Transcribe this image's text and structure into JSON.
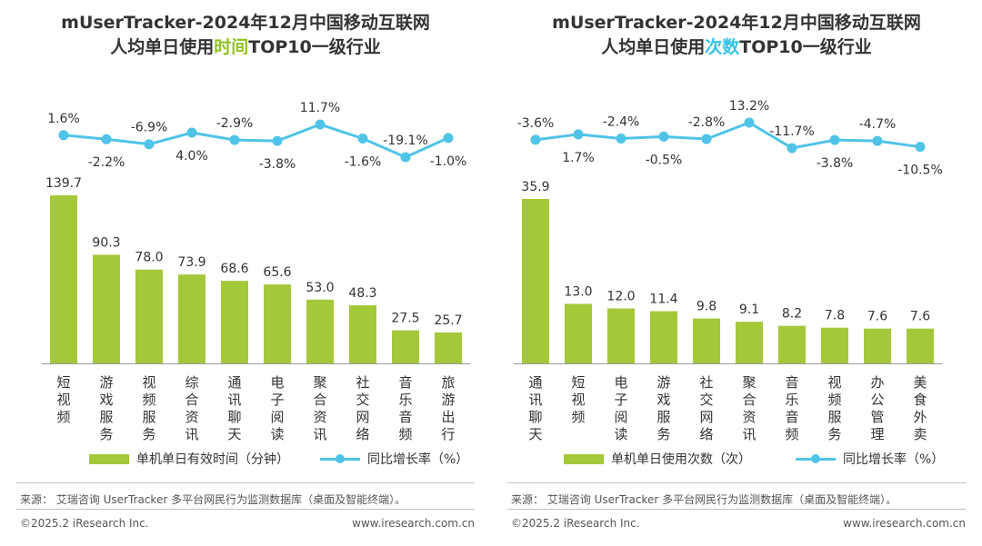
{
  "charts": [
    {
      "title_line1": "mUserTracker-2024年12月中国移动互联网",
      "title_line2_pre": "人均单日使用",
      "title_line2_hl": "时间",
      "title_line2_post": "TOP10一级行业",
      "legend_bar": "单机单日有效时间（分钟）",
      "legend_line": "同比增长率（%）",
      "source": "来源：  艾瑞咨询 UserTracker 多平台网民行为监测数据库（桌面及智能终端）。",
      "copyright": "©2025.2 iResearch Inc.",
      "website": "www.iresearch.com.cn"
    },
    {
      "title_line1": "mUserTracker-2024年12月中国移动互联网",
      "title_line2_pre": "人均单日使用",
      "title_line2_hl": "次数",
      "title_line2_post": "TOP10一级行业",
      "legend_bar": "单机单日使用次数（次）",
      "legend_line": "同比增长率（%）",
      "source": "来源：  艾瑞咨询 UserTracker 多平台网民行为监测数据库（桌面及智能终端）。",
      "copyright": "©2025.2 iResearch Inc.",
      "website": "www.iresearch.com.cn"
    }
  ],
  "colors": {
    "bar": "#a3c83a",
    "line": "#4fc3e8",
    "highlight_time": "#8dc21f",
    "highlight_count": "#35c2ec",
    "text": "#333333"
  },
  "chart_data": [
    {
      "type": "bar",
      "categories": [
        "短视频",
        "游戏服务",
        "视频服务",
        "综合资讯",
        "通讯聊天",
        "电子阅读",
        "聚合资讯",
        "社交网络",
        "音乐音频",
        "旅游出行"
      ],
      "series": [
        {
          "name": "单机单日有效时间（分钟）",
          "type": "bar",
          "values": [
            139.7,
            90.3,
            78.0,
            73.9,
            68.6,
            65.6,
            53.0,
            48.3,
            27.5,
            25.7
          ],
          "labels": [
            "139.7",
            "90.3",
            "78.0",
            "73.9",
            "68.6",
            "65.6",
            "53.0",
            "48.3",
            "27.5",
            "25.7"
          ]
        },
        {
          "name": "同比增长率（%）",
          "type": "line",
          "values": [
            1.6,
            -2.2,
            -6.9,
            4.0,
            -2.9,
            -3.8,
            11.7,
            -1.6,
            -19.1,
            -1.0
          ],
          "labels": [
            "1.6%",
            "-2.2%",
            "-6.9%",
            "4.0%",
            "-2.9%",
            "-3.8%",
            "11.7%",
            "-1.6%",
            "-19.1%",
            "-1.0%"
          ]
        }
      ],
      "bar_ylim": [
        0,
        139.7
      ],
      "line_ylim": [
        -25,
        15
      ],
      "legend": "bottom"
    },
    {
      "type": "bar",
      "categories": [
        "通讯聊天",
        "短视频",
        "电子阅读",
        "游戏服务",
        "社交网络",
        "聚合资讯",
        "音乐音频",
        "视频服务",
        "办公管理",
        "美食外卖"
      ],
      "series": [
        {
          "name": "单机单日使用次数（次）",
          "type": "bar",
          "values": [
            35.9,
            13.0,
            12.0,
            11.4,
            9.8,
            9.1,
            8.2,
            7.8,
            7.6,
            7.6
          ],
          "labels": [
            "35.9",
            "13.0",
            "12.0",
            "11.4",
            "9.8",
            "9.1",
            "8.2",
            "7.8",
            "7.6",
            "7.6"
          ]
        },
        {
          "name": "同比增长率（%）",
          "type": "line",
          "values": [
            -3.6,
            1.7,
            -2.4,
            -0.5,
            -2.8,
            13.2,
            -11.7,
            -3.8,
            -4.7,
            -10.5
          ],
          "labels": [
            "-3.6%",
            "1.7%",
            "-2.4%",
            "-0.5%",
            "-2.8%",
            "13.2%",
            "-11.7%",
            "-3.8%",
            "-4.7%",
            "-10.5%"
          ]
        }
      ],
      "bar_ylim": [
        0,
        35.9
      ],
      "line_ylim": [
        -25,
        15
      ],
      "legend": "bottom"
    }
  ]
}
